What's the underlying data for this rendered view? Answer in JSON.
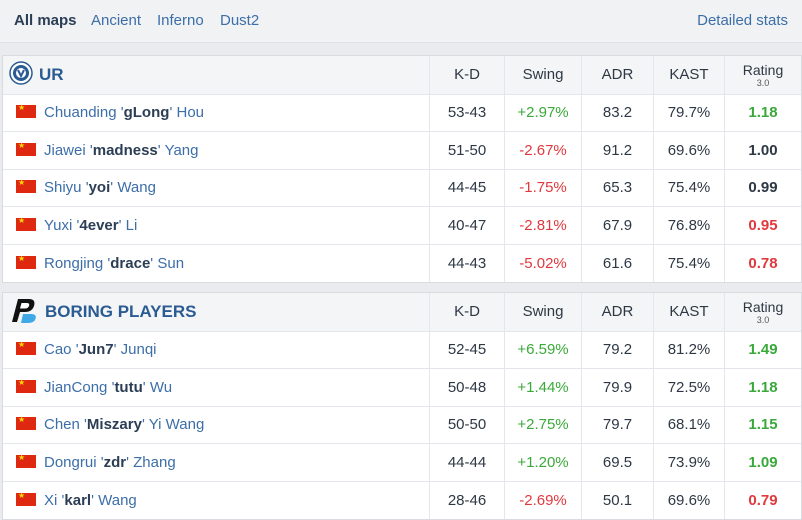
{
  "tabs": [
    {
      "label": "All maps",
      "active": true
    },
    {
      "label": "Ancient",
      "active": false
    },
    {
      "label": "Inferno",
      "active": false
    },
    {
      "label": "Dust2",
      "active": false
    }
  ],
  "detailed_stats_label": "Detailed stats",
  "columns": {
    "kd": "K-D",
    "swing": "Swing",
    "adr": "ADR",
    "kast": "KAST",
    "rating": "Rating",
    "rating_sub": "3.0"
  },
  "colors": {
    "positive": "#3aa93a",
    "negative": "#e0393e",
    "link": "#3c6ea8"
  },
  "teams": [
    {
      "name": "UR",
      "logo_icon": "ur-team-logo-icon",
      "players": [
        {
          "first": "Chuanding",
          "nick": "gLong",
          "last": "Hou",
          "kd": "53-43",
          "swing": "+2.97%",
          "adr": "83.2",
          "kast": "79.7%",
          "rating": "1.18",
          "flag": "china-flag-icon"
        },
        {
          "first": "Jiawei",
          "nick": "madness",
          "last": "Yang",
          "kd": "51-50",
          "swing": "-2.67%",
          "adr": "91.2",
          "kast": "69.6%",
          "rating": "1.00",
          "flag": "china-flag-icon"
        },
        {
          "first": "Shiyu",
          "nick": "yoi",
          "last": "Wang",
          "kd": "44-45",
          "swing": "-1.75%",
          "adr": "65.3",
          "kast": "75.4%",
          "rating": "0.99",
          "flag": "china-flag-icon"
        },
        {
          "first": "Yuxi",
          "nick": "4ever",
          "last": "Li",
          "kd": "40-47",
          "swing": "-2.81%",
          "adr": "67.9",
          "kast": "76.8%",
          "rating": "0.95",
          "flag": "china-flag-icon"
        },
        {
          "first": "Rongjing",
          "nick": "drace",
          "last": "Sun",
          "kd": "44-43",
          "swing": "-5.02%",
          "adr": "61.6",
          "kast": "75.4%",
          "rating": "0.78",
          "flag": "china-flag-icon"
        }
      ]
    },
    {
      "name": "BORING PLAYERS",
      "logo_icon": "boring-players-logo-icon",
      "players": [
        {
          "first": "Cao",
          "nick": "Jun7",
          "last": "Junqi",
          "kd": "52-45",
          "swing": "+6.59%",
          "adr": "79.2",
          "kast": "81.2%",
          "rating": "1.49",
          "flag": "china-flag-icon"
        },
        {
          "first": "JianCong",
          "nick": "tutu",
          "last": "Wu",
          "kd": "50-48",
          "swing": "+1.44%",
          "adr": "79.9",
          "kast": "72.5%",
          "rating": "1.18",
          "flag": "china-flag-icon"
        },
        {
          "first": "Chen",
          "nick": "Miszary",
          "last": "Yi Wang",
          "kd": "50-50",
          "swing": "+2.75%",
          "adr": "79.7",
          "kast": "68.1%",
          "rating": "1.15",
          "flag": "china-flag-icon"
        },
        {
          "first": "Dongrui",
          "nick": "zdr",
          "last": "Zhang",
          "kd": "44-44",
          "swing": "+1.20%",
          "adr": "69.5",
          "kast": "73.9%",
          "rating": "1.09",
          "flag": "china-flag-icon"
        },
        {
          "first": "Xi",
          "nick": "karl",
          "last": "Wang",
          "kd": "28-46",
          "swing": "-2.69%",
          "adr": "50.1",
          "kast": "69.6%",
          "rating": "0.79",
          "flag": "china-flag-icon"
        }
      ]
    }
  ]
}
